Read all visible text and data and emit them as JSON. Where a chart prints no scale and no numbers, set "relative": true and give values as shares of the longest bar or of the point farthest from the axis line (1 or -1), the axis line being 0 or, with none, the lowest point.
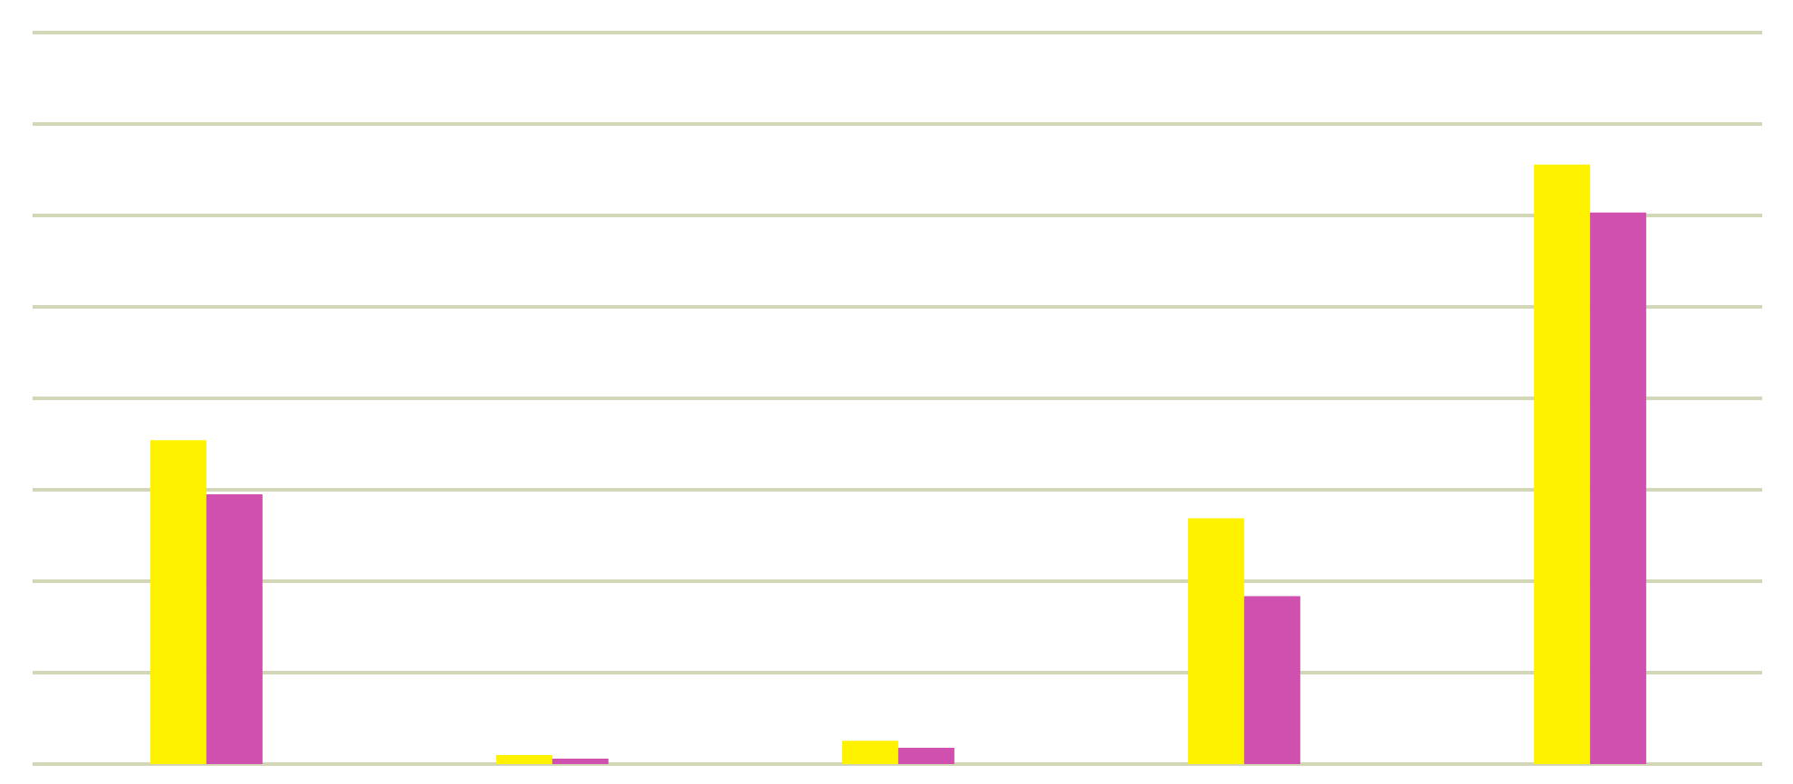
{
  "chart_data": {
    "type": "bar",
    "relative": true,
    "categories": [
      null,
      null,
      null,
      null,
      null
    ],
    "series": [
      {
        "color": "#fef200",
        "values": [
          0.54,
          0.015,
          0.039,
          0.41,
          1
        ]
      },
      {
        "color": "#cf50ae",
        "values": [
          0.45,
          0.009,
          0.027,
          0.28,
          0.92
        ]
      }
    ],
    "grid": "y",
    "legend": false
  }
}
